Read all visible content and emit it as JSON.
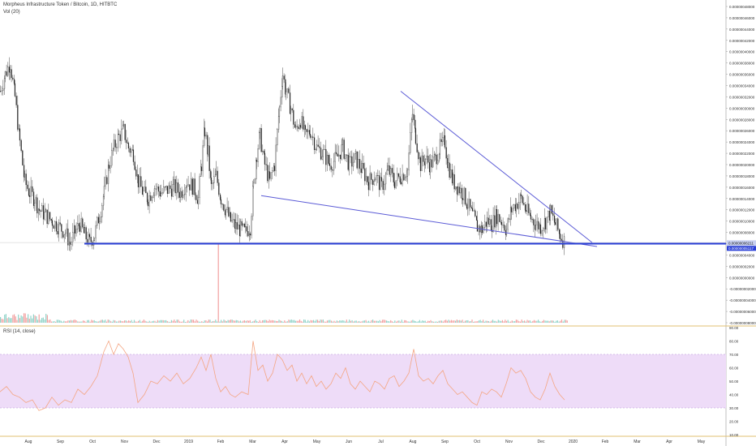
{
  "header": {
    "title": "Morpheus Infrastructure Token / Bitcoin, 1D, HITBTC",
    "vol_label": "Vol (20)"
  },
  "rsi_label": "RSI (14, close)",
  "colors": {
    "candle": "#222222",
    "trendline": "#5b5bd6",
    "support": "#2a3fd6",
    "rsi_line": "#f4a582",
    "rsi_band": "#eedcf8",
    "vol_up": "#8fd3c8",
    "vol_down": "#f2a0a0",
    "divider": "#e0c070"
  },
  "chart_data": [
    {
      "type": "candlestick",
      "title": "Morpheus Infrastructure Token / Bitcoin, 1D, HITBTC",
      "x_ticks": [
        "Aug",
        "Sep",
        "Oct",
        "Nov",
        "Dec",
        "2019",
        "Feb",
        "Mar",
        "Apr",
        "May",
        "Jun",
        "Jul",
        "Aug",
        "Sep",
        "Oct",
        "Nov",
        "Dec",
        "2020",
        "Feb",
        "Mar",
        "Apr",
        "May"
      ],
      "y_ticks": [
        "0.00000048000",
        "0.00000046000",
        "0.00000044000",
        "0.00000042000",
        "0.00000040000",
        "0.00000038000",
        "0.00000036000",
        "0.00000034000",
        "0.00000032000",
        "0.00000030000",
        "0.00000028000",
        "0.00000026000",
        "0.00000024000",
        "0.00000022000",
        "0.00000020000",
        "0.00000018000",
        "0.00000016000",
        "0.00000014000",
        "0.00000012000",
        "0.00000010000",
        "0.00000008000",
        "0.00000006000",
        "0.00000004000",
        "0.00000002000",
        "0.00000000000",
        "-0.00000002000",
        "-0.00000004000",
        "-0.00000006000",
        "-0.00000008000"
      ],
      "ylim": [
        -8e-08,
        4.8e-07
      ],
      "price_labels": [
        "0.00000006211",
        "0.00000005117"
      ],
      "series": {
        "close_path": [
          [
            0,
            3.3e-07
          ],
          [
            6,
            3.6e-07
          ],
          [
            12,
            3.8e-07
          ],
          [
            18,
            3.2e-07
          ],
          [
            24,
            2.4e-07
          ],
          [
            30,
            1.7e-07
          ],
          [
            36,
            1.5e-07
          ],
          [
            42,
            1.4e-07
          ],
          [
            48,
            1.2e-07
          ],
          [
            56,
            1.1e-07
          ],
          [
            64,
            1e-07
          ],
          [
            72,
            9e-08
          ],
          [
            80,
            8e-08
          ],
          [
            86,
            6e-08
          ],
          [
            92,
            8e-08
          ],
          [
            98,
            9.5e-08
          ],
          [
            104,
            7.5e-08
          ],
          [
            110,
            6.2e-08
          ],
          [
            116,
            7.5e-08
          ],
          [
            122,
            1.1e-07
          ],
          [
            128,
            1.5e-07
          ],
          [
            134,
            2e-07
          ],
          [
            140,
            2.3e-07
          ],
          [
            146,
            2.5e-07
          ],
          [
            152,
            2.6e-07
          ],
          [
            158,
            2.3e-07
          ],
          [
            164,
            2.2e-07
          ],
          [
            170,
            1.7e-07
          ],
          [
            176,
            1.5e-07
          ],
          [
            182,
            1.4e-07
          ],
          [
            190,
            1.6e-07
          ],
          [
            198,
            1.5e-07
          ],
          [
            206,
            1.55e-07
          ],
          [
            214,
            1.6e-07
          ],
          [
            222,
            1.5e-07
          ],
          [
            230,
            1.7e-07
          ],
          [
            238,
            1.6e-07
          ],
          [
            244,
            1.4e-07
          ],
          [
            248,
            2e-07
          ],
          [
            252,
            2.6e-07
          ],
          [
            256,
            2.2e-07
          ],
          [
            260,
            1.6e-07
          ],
          [
            266,
            1.8e-07
          ],
          [
            272,
            1.4e-07
          ],
          [
            278,
            1.2e-07
          ],
          [
            284,
            1e-07
          ],
          [
            290,
            9e-08
          ],
          [
            296,
            8.5e-08
          ],
          [
            302,
            8e-08
          ],
          [
            308,
            9e-08
          ],
          [
            312,
            1.6e-07
          ],
          [
            316,
            2.2e-07
          ],
          [
            320,
            2.5e-07
          ],
          [
            326,
            2e-07
          ],
          [
            332,
            1.7e-07
          ],
          [
            338,
            2e-07
          ],
          [
            344,
            3e-07
          ],
          [
            348,
            3.6e-07
          ],
          [
            352,
            3.3e-07
          ],
          [
            358,
            3e-07
          ],
          [
            364,
            2.6e-07
          ],
          [
            370,
            2.8e-07
          ],
          [
            376,
            2.5e-07
          ],
          [
            382,
            2.6e-07
          ],
          [
            390,
            2.3e-07
          ],
          [
            398,
            2.2e-07
          ],
          [
            406,
            2e-07
          ],
          [
            414,
            2.1e-07
          ],
          [
            422,
            2.3e-07
          ],
          [
            430,
            2e-07
          ],
          [
            438,
            2.1e-07
          ],
          [
            446,
            1.9e-07
          ],
          [
            454,
            1.7e-07
          ],
          [
            462,
            1.8e-07
          ],
          [
            470,
            1.6e-07
          ],
          [
            478,
            1.9e-07
          ],
          [
            486,
            1.7e-07
          ],
          [
            494,
            1.8e-07
          ],
          [
            502,
            1.9e-07
          ],
          [
            508,
            2.9e-07
          ],
          [
            512,
            2.5e-07
          ],
          [
            518,
            2e-07
          ],
          [
            524,
            2.1e-07
          ],
          [
            530,
            2e-07
          ],
          [
            536,
            2.1e-07
          ],
          [
            542,
            2.3e-07
          ],
          [
            548,
            2.4e-07
          ],
          [
            552,
            2e-07
          ],
          [
            558,
            1.7e-07
          ],
          [
            564,
            1.6e-07
          ],
          [
            570,
            1.5e-07
          ],
          [
            576,
            1.3e-07
          ],
          [
            582,
            1.1e-07
          ],
          [
            588,
            9e-08
          ],
          [
            594,
            8.5e-08
          ],
          [
            600,
            1e-07
          ],
          [
            606,
            9.5e-08
          ],
          [
            612,
            1.1e-07
          ],
          [
            618,
            1e-07
          ],
          [
            624,
            8.5e-08
          ],
          [
            630,
            1.2e-07
          ],
          [
            636,
            1.3e-07
          ],
          [
            642,
            1.4e-07
          ],
          [
            648,
            1.2e-07
          ],
          [
            654,
            1.05e-07
          ],
          [
            660,
            9.5e-08
          ],
          [
            666,
            9e-08
          ],
          [
            672,
            1e-07
          ],
          [
            678,
            1.15e-07
          ],
          [
            684,
            9.5e-08
          ],
          [
            690,
            7.5e-08
          ],
          [
            696,
            6.2e-08
          ]
        ],
        "wedge_upper": [
          [
            494,
            3.3e-07
          ],
          [
            730,
            6.2e-08
          ]
        ],
        "wedge_lower": [
          [
            322,
            1.45e-07
          ],
          [
            736,
            5.5e-08
          ]
        ],
        "support_line": [
          [
            104,
            6e-08
          ],
          [
            932,
            6e-08
          ]
        ]
      }
    },
    {
      "type": "bar",
      "title": "Vol (20)",
      "volume_spike_x": 268
    },
    {
      "type": "line",
      "title": "RSI (14, close)",
      "y_ticks": [
        "90.00",
        "80.00",
        "70.00",
        "60.00",
        "50.00",
        "40.00",
        "30.00",
        "20.00",
        "10.00"
      ],
      "ylim": [
        10,
        90
      ],
      "band": [
        30,
        70
      ],
      "values": [
        [
          0,
          42
        ],
        [
          8,
          46
        ],
        [
          16,
          40
        ],
        [
          24,
          38
        ],
        [
          32,
          34
        ],
        [
          40,
          36
        ],
        [
          48,
          28
        ],
        [
          56,
          30
        ],
        [
          64,
          38
        ],
        [
          72,
          32
        ],
        [
          80,
          36
        ],
        [
          88,
          34
        ],
        [
          96,
          44
        ],
        [
          104,
          40
        ],
        [
          112,
          46
        ],
        [
          120,
          54
        ],
        [
          128,
          72
        ],
        [
          134,
          80
        ],
        [
          140,
          70
        ],
        [
          146,
          78
        ],
        [
          152,
          74
        ],
        [
          158,
          68
        ],
        [
          164,
          56
        ],
        [
          170,
          34
        ],
        [
          178,
          40
        ],
        [
          186,
          50
        ],
        [
          194,
          48
        ],
        [
          202,
          54
        ],
        [
          210,
          50
        ],
        [
          218,
          56
        ],
        [
          226,
          48
        ],
        [
          234,
          52
        ],
        [
          242,
          60
        ],
        [
          248,
          68
        ],
        [
          254,
          58
        ],
        [
          260,
          70
        ],
        [
          266,
          52
        ],
        [
          272,
          42
        ],
        [
          278,
          46
        ],
        [
          284,
          40
        ],
        [
          290,
          38
        ],
        [
          298,
          42
        ],
        [
          306,
          40
        ],
        [
          312,
          80
        ],
        [
          318,
          58
        ],
        [
          324,
          62
        ],
        [
          330,
          50
        ],
        [
          336,
          56
        ],
        [
          342,
          70
        ],
        [
          348,
          66
        ],
        [
          354,
          58
        ],
        [
          360,
          62
        ],
        [
          366,
          50
        ],
        [
          372,
          56
        ],
        [
          378,
          48
        ],
        [
          384,
          54
        ],
        [
          390,
          46
        ],
        [
          396,
          50
        ],
        [
          402,
          44
        ],
        [
          408,
          48
        ],
        [
          414,
          56
        ],
        [
          420,
          52
        ],
        [
          426,
          60
        ],
        [
          432,
          48
        ],
        [
          438,
          44
        ],
        [
          444,
          50
        ],
        [
          450,
          46
        ],
        [
          456,
          42
        ],
        [
          462,
          50
        ],
        [
          468,
          48
        ],
        [
          474,
          44
        ],
        [
          480,
          52
        ],
        [
          486,
          54
        ],
        [
          492,
          46
        ],
        [
          498,
          50
        ],
        [
          504,
          56
        ],
        [
          510,
          74
        ],
        [
          516,
          54
        ],
        [
          522,
          50
        ],
        [
          528,
          52
        ],
        [
          534,
          48
        ],
        [
          540,
          54
        ],
        [
          546,
          58
        ],
        [
          552,
          48
        ],
        [
          558,
          44
        ],
        [
          564,
          40
        ],
        [
          570,
          42
        ],
        [
          576,
          38
        ],
        [
          582,
          34
        ],
        [
          588,
          32
        ],
        [
          594,
          42
        ],
        [
          600,
          40
        ],
        [
          606,
          44
        ],
        [
          612,
          42
        ],
        [
          618,
          38
        ],
        [
          624,
          48
        ],
        [
          630,
          60
        ],
        [
          636,
          56
        ],
        [
          642,
          58
        ],
        [
          648,
          52
        ],
        [
          654,
          42
        ],
        [
          660,
          38
        ],
        [
          666,
          36
        ],
        [
          672,
          44
        ],
        [
          678,
          56
        ],
        [
          684,
          46
        ],
        [
          690,
          40
        ],
        [
          696,
          36
        ]
      ]
    }
  ]
}
